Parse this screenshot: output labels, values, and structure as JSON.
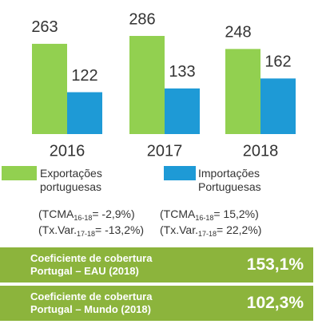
{
  "chart_data": {
    "type": "bar",
    "categories": [
      "2016",
      "2017",
      "2018"
    ],
    "series": [
      {
        "name": "Exportações portuguesas",
        "color": "#92d050",
        "values": [
          263,
          286,
          248
        ],
        "notes": [
          {
            "pre": "(TCMA",
            "sub": "16-18",
            "post": "= -2,9%)"
          },
          {
            "pre": "(Tx.Var.",
            "sub": "17-18",
            "post": "= -13,2%)"
          }
        ]
      },
      {
        "name": "Importações Portuguesas",
        "color": "#1e9ad6",
        "values": [
          122,
          133,
          162
        ],
        "notes": [
          {
            "pre": "(TCMA",
            "sub": "16-18",
            "post": "= 15,2%)"
          },
          {
            "pre": "(Tx.Var.",
            "sub": "17-18",
            "post": "= 22,2%)"
          }
        ]
      }
    ]
  },
  "boxes": [
    {
      "label": [
        "Coeficiente de cobertura",
        "Portugal – EAU (2018)"
      ],
      "value": "153,1%"
    },
    {
      "label": [
        "Coeficiente de cobertura",
        "Portugal – Mundo (2018)"
      ],
      "value": "102,3%"
    }
  ]
}
